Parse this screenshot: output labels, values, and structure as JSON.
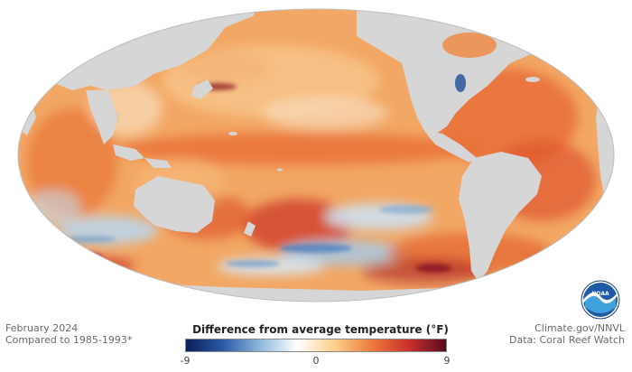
{
  "left_info": {
    "date": "February 2024",
    "baseline": "Compared to 1985-1993*"
  },
  "right_info": {
    "site": "Climate.gov/NNVL",
    "source": "Data: Coral Reef Watch"
  },
  "legend": {
    "title": "Difference from average temperature (°F)",
    "ticks": [
      "-9",
      "0",
      "9"
    ],
    "colors": [
      "#0a1f5c",
      "#2b5aa6",
      "#8fb8dc",
      "#ffffff",
      "#fbd08a",
      "#ee7a3a",
      "#c9302c",
      "#5a0a22"
    ]
  },
  "logo": {
    "text": "NOAA"
  },
  "map": {
    "land_color": "#d6d6d6",
    "ocean_base_color": "#f0a562"
  }
}
